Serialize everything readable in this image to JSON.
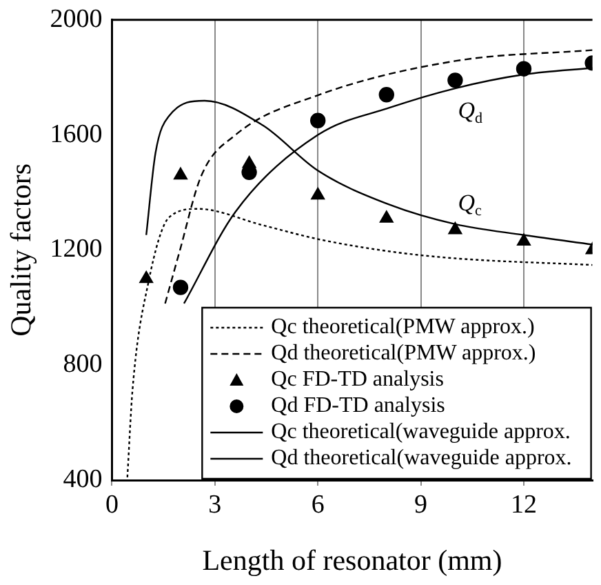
{
  "chart_data": {
    "type": "line",
    "xlabel": "Length of resonator (mm)",
    "ylabel": "Quality factors",
    "xlim": [
      0,
      14
    ],
    "xticks": [
      0,
      3,
      6,
      9,
      12
    ],
    "ylim": [
      400,
      2000
    ],
    "yticks": [
      400,
      800,
      1200,
      1600,
      2000
    ],
    "grid": "x",
    "legend": "bottom right",
    "annotations": [
      "Q$_{d}$",
      "Q$_{c}$"
    ],
    "series": [
      {
        "name": "Qc theoretical(PMW approx.)",
        "line_style": "dotted",
        "marker": "none",
        "color": "#000000",
        "x": [
          0.45,
          0.6,
          1.06,
          1.67,
          2.5,
          4.4,
          6,
          8.1,
          10,
          14
        ],
        "values": [
          410,
          714,
          1086,
          1314,
          1343,
          1286,
          1238,
          1195,
          1171,
          1148
        ]
      },
      {
        "name": "Qd theoretical(PMW approx.)",
        "line_style": "dashed",
        "marker": "none",
        "color": "#000000",
        "x": [
          1.55,
          1.96,
          2.6,
          3.6,
          6,
          10,
          14
        ],
        "values": [
          1014,
          1190,
          1457,
          1600,
          1738,
          1857,
          1895
        ]
      },
      {
        "name": "Qc FD-TD analysis",
        "type": "scatter",
        "marker": "triangle",
        "color": "#000000",
        "x": [
          1,
          2,
          4,
          6,
          8,
          10,
          12,
          14
        ],
        "values": [
          1100,
          1460,
          1500,
          1390,
          1310,
          1270,
          1230,
          1200
        ]
      },
      {
        "name": "Qd FD-TD analysis",
        "type": "scatter",
        "marker": "circle",
        "color": "#000000",
        "x": [
          2,
          4,
          6,
          8,
          10,
          12,
          14
        ],
        "values": [
          1070,
          1470,
          1650,
          1740,
          1790,
          1830,
          1850
        ]
      },
      {
        "name": "Qc theoretical(waveguide approx.",
        "line_style": "solid",
        "marker": "none",
        "color": "#000000",
        "x": [
          1,
          1.27,
          1.67,
          2.7,
          4.4,
          6,
          8.1,
          10,
          12,
          14
        ],
        "values": [
          1252,
          1538,
          1667,
          1719,
          1633,
          1476,
          1357,
          1290,
          1252,
          1219
        ]
      },
      {
        "name": "Qd theoretical(waveguide approx.",
        "line_style": "solid",
        "marker": "none",
        "color": "#000000",
        "x": [
          2.1,
          3.6,
          6,
          8.1,
          10,
          12,
          14
        ],
        "values": [
          1014,
          1333,
          1600,
          1695,
          1762,
          1810,
          1833
        ]
      }
    ]
  }
}
